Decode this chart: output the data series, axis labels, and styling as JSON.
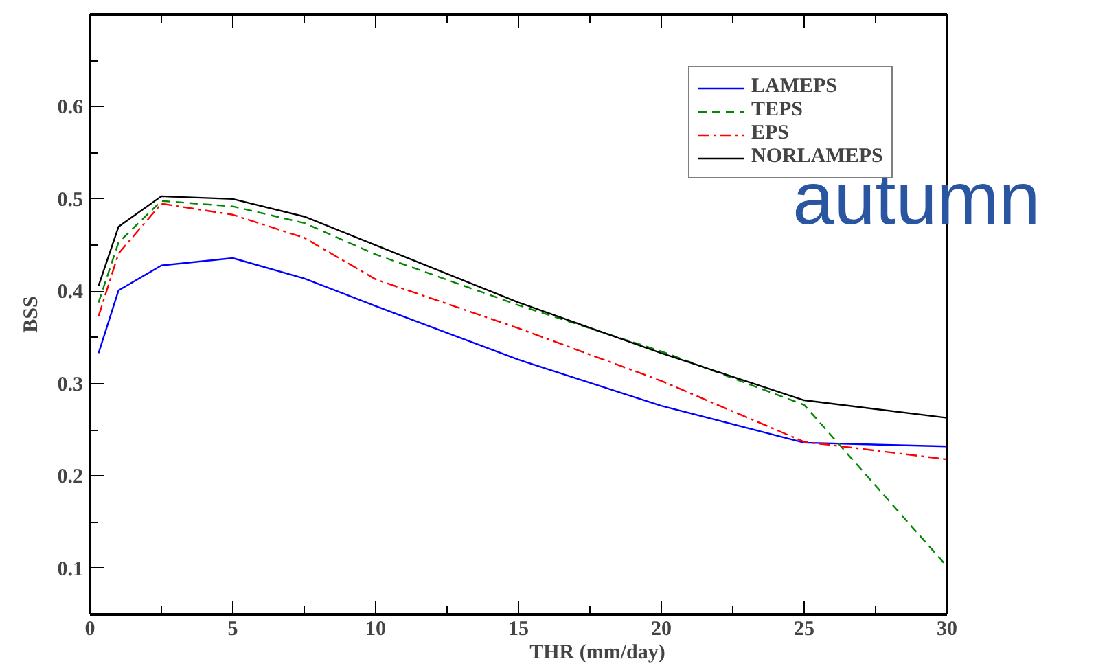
{
  "chart_data": {
    "type": "line",
    "xlabel": "THR (mm/day)",
    "ylabel": "BSS",
    "x": [
      0.3,
      1,
      2.5,
      5,
      7.5,
      10,
      15,
      20,
      25,
      30
    ],
    "series": [
      {
        "name": "LAMEPS",
        "color": "#0000ff",
        "line_style": "solid",
        "values": [
          0.333,
          0.401,
          0.428,
          0.436,
          0.414,
          0.384,
          0.326,
          0.276,
          0.236,
          0.232
        ]
      },
      {
        "name": "TEPS",
        "color": "#008800",
        "line_style": "dashed",
        "values": [
          0.388,
          0.453,
          0.498,
          0.492,
          0.474,
          0.44,
          0.385,
          0.335,
          0.277,
          0.102
        ]
      },
      {
        "name": "EPS",
        "color": "#ff0000",
        "line_style": "dashdot",
        "values": [
          0.373,
          0.441,
          0.495,
          0.483,
          0.458,
          0.413,
          0.36,
          0.303,
          0.237,
          0.218
        ]
      },
      {
        "name": "NORLAMEPS",
        "color": "#000000",
        "line_style": "solid",
        "values": [
          0.406,
          0.47,
          0.503,
          0.5,
          0.481,
          0.45,
          0.388,
          0.333,
          0.282,
          0.263
        ]
      }
    ],
    "xlim": [
      0,
      30
    ],
    "ylim": [
      0.05,
      0.7
    ],
    "xticks": [
      0,
      {
        "value": 2.5,
        "label": null
      },
      5,
      {
        "value": 7.5,
        "label": null
      },
      10,
      {
        "value": 12.5,
        "label": null
      },
      15,
      {
        "value": 17.5,
        "label": null
      },
      20,
      {
        "value": 22.5,
        "label": null
      },
      25,
      {
        "value": 27.5,
        "label": null
      },
      30
    ],
    "yticks": [
      {
        "value": 0.1,
        "label": "0.1"
      },
      {
        "value": 0.15,
        "label": null
      },
      {
        "value": 0.2,
        "label": "0.2"
      },
      {
        "value": 0.25,
        "label": null
      },
      {
        "value": 0.3,
        "label": "0.3"
      },
      {
        "value": 0.35,
        "label": null
      },
      {
        "value": 0.4,
        "label": "0.4"
      },
      {
        "value": 0.45,
        "label": null
      },
      {
        "value": 0.5,
        "label": "0.5"
      },
      {
        "value": 0.55,
        "label": null
      },
      {
        "value": 0.6,
        "label": "0.6"
      },
      {
        "value": 0.65,
        "label": null
      }
    ],
    "grid": false,
    "legend": "top right",
    "marker": "none",
    "annotations": [
      "autumn"
    ]
  }
}
